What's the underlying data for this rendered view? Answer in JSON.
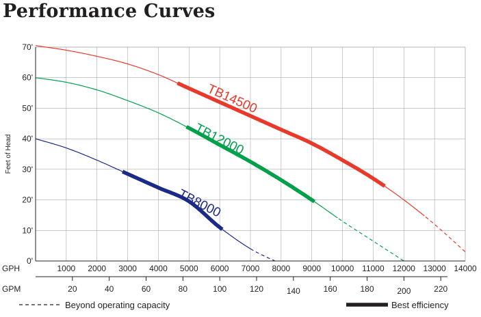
{
  "title": "Performance Curves",
  "chart_data": {
    "type": "line",
    "title": "Performance Curves",
    "ylabel": "Feet of Head",
    "y_ticks": [
      "0'",
      "10'",
      "20'",
      "30'",
      "40'",
      "50'",
      "60'",
      "70'"
    ],
    "ylim": [
      0,
      70
    ],
    "x_axes": [
      {
        "label": "GPH",
        "ticks": [
          1000,
          2000,
          3000,
          4000,
          5000,
          6000,
          7000,
          8000,
          9000,
          10000,
          11000,
          12000,
          13000,
          14000
        ],
        "lim": [
          0,
          14000
        ]
      },
      {
        "label": "GPM",
        "ticks": [
          20,
          40,
          60,
          80,
          100,
          120,
          140,
          160,
          180,
          200,
          220
        ],
        "lim": [
          0,
          233.3
        ]
      }
    ],
    "grid": true,
    "series": [
      {
        "name": "TB14500",
        "color": "#e8392a",
        "points": [
          [
            0,
            70.5
          ],
          [
            1000,
            69
          ],
          [
            2000,
            67
          ],
          [
            3000,
            64.5
          ],
          [
            4000,
            61
          ],
          [
            5000,
            56.5
          ],
          [
            6000,
            52
          ],
          [
            7000,
            47.5
          ],
          [
            8000,
            43
          ],
          [
            9000,
            38.5
          ],
          [
            10000,
            33
          ],
          [
            11000,
            27
          ],
          [
            12000,
            20
          ],
          [
            13000,
            12
          ],
          [
            14000,
            3
          ]
        ],
        "operating_max_gph": 12700,
        "best_efficiency_gph": [
          4600,
          11400
        ]
      },
      {
        "name": "TB12000",
        "color": "#00a04b",
        "points": [
          [
            0,
            60
          ],
          [
            1000,
            58.5
          ],
          [
            2000,
            56
          ],
          [
            3000,
            52.5
          ],
          [
            4000,
            48.5
          ],
          [
            5000,
            43.5
          ],
          [
            6000,
            38
          ],
          [
            7000,
            32.5
          ],
          [
            8000,
            26.5
          ],
          [
            9000,
            20
          ],
          [
            10000,
            13
          ],
          [
            11000,
            6.5
          ],
          [
            12000,
            0
          ]
        ],
        "operating_max_gph": 9850,
        "best_efficiency_gph": [
          4900,
          9100
        ]
      },
      {
        "name": "TB8000",
        "color": "#1b2a86",
        "points": [
          [
            0,
            40
          ],
          [
            1000,
            37
          ],
          [
            2000,
            33
          ],
          [
            3000,
            28.5
          ],
          [
            4000,
            24
          ],
          [
            5000,
            19.5
          ],
          [
            6000,
            11
          ],
          [
            7000,
            4
          ],
          [
            7800,
            0
          ]
        ],
        "operating_max_gph": 7000,
        "best_efficiency_gph": [
          2800,
          6100
        ]
      }
    ],
    "legend": [
      {
        "style": "dashed",
        "label": "Beyond operating capacity"
      },
      {
        "style": "thick",
        "label": "Best efficiency"
      }
    ]
  }
}
